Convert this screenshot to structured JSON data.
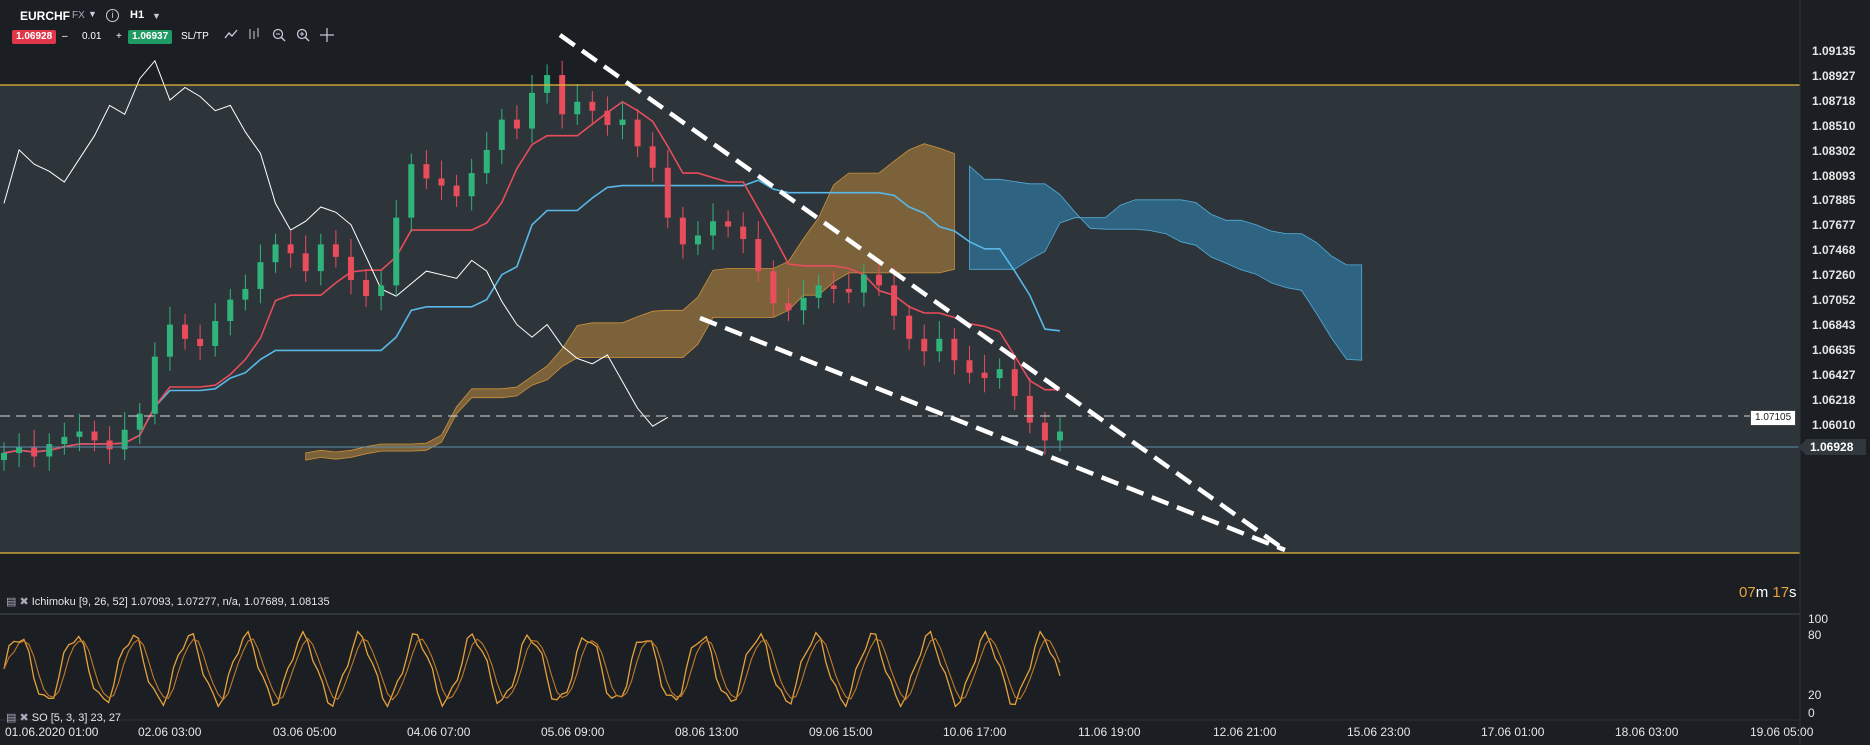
{
  "toolbar": {
    "symbol": "EURCHF",
    "market": "FX",
    "timeframe": "H1",
    "bid": "1.06928",
    "ask": "1.06937",
    "quantity": "0.01",
    "minus": "–",
    "plus": "+",
    "sltp": "SL/TP",
    "icons": [
      "line-chart-icon",
      "indicators-icon",
      "zoom-out-icon",
      "zoom-in-icon",
      "crosshair-icon"
    ]
  },
  "chart_data": {
    "type": "candlestick",
    "instrument": "EURCHF",
    "timeframe": "H1",
    "price_ticks": [
      "1.09135",
      "1.08927",
      "1.08718",
      "1.08510",
      "1.08302",
      "1.08093",
      "1.07885",
      "1.07677",
      "1.07468",
      "1.07260",
      "1.07052",
      "1.06843",
      "1.06635",
      "1.06427",
      "1.06218",
      "1.06010"
    ],
    "current_price": "1.06928",
    "horizontal_level": "1.07105",
    "ylim": [
      1.0601,
      1.09135
    ],
    "x_ticks": [
      "01.06.2020 01:00",
      "02.06 03:00",
      "03.06 05:00",
      "04.06 07:00",
      "05.06 09:00",
      "08.06 13:00",
      "09.06 15:00",
      "10.06 17:00",
      "11.06 19:00",
      "12.06 21:00",
      "15.06 23:00",
      "17.06 01:00",
      "18.06 03:00",
      "19.06 05:00"
    ],
    "countdown": {
      "minutes": "07",
      "m": "m",
      "seconds": "17",
      "s": "s"
    },
    "ohlc_close": [
      1.0688,
      1.0691,
      1.0686,
      1.0693,
      1.0697,
      1.07,
      1.0695,
      1.069,
      1.0701,
      1.071,
      1.0742,
      1.076,
      1.0752,
      1.0748,
      1.0762,
      1.0774,
      1.078,
      1.0795,
      1.0805,
      1.08,
      1.079,
      1.0805,
      1.0798,
      1.0785,
      1.0776,
      1.0782,
      1.082,
      1.085,
      1.0842,
      1.0838,
      1.0832,
      1.0845,
      1.0858,
      1.0875,
      1.087,
      1.089,
      1.09,
      1.0878,
      1.0885,
      1.088,
      1.0872,
      1.0875,
      1.086,
      1.0848,
      1.082,
      1.0805,
      1.081,
      1.0818,
      1.0815,
      1.0808,
      1.079,
      1.0772,
      1.0768,
      1.0775,
      1.0782,
      1.078,
      1.0778,
      1.0788,
      1.0782,
      1.0765,
      1.0752,
      1.0745,
      1.0752,
      1.074,
      1.0733,
      1.073,
      1.0735,
      1.072,
      1.0705,
      1.0695,
      1.07
    ],
    "indicators": [
      {
        "name": "Ichimoku",
        "params": "[9, 26, 52]",
        "values": "1.07093, 1.07277, n/a, 1.07689, 1.08135"
      },
      {
        "name": "SO",
        "params": "[5, 3, 3]",
        "values": "23, 27"
      }
    ],
    "oscillator_ticks": [
      "100",
      "80",
      "20",
      "0"
    ],
    "trendlines": "falling wedge (white dashed)"
  },
  "colors": {
    "background": "#1b1f23",
    "panel": "#2d353b",
    "tenkan": "#e94c5a",
    "kijun": "#58b8e8",
    "chikou": "#ffffff",
    "cloud_bull": "#8a6a3a",
    "cloud_bear": "#2f6a8a",
    "range_line": "#e6b93a",
    "so_line": "#e8a23b"
  }
}
